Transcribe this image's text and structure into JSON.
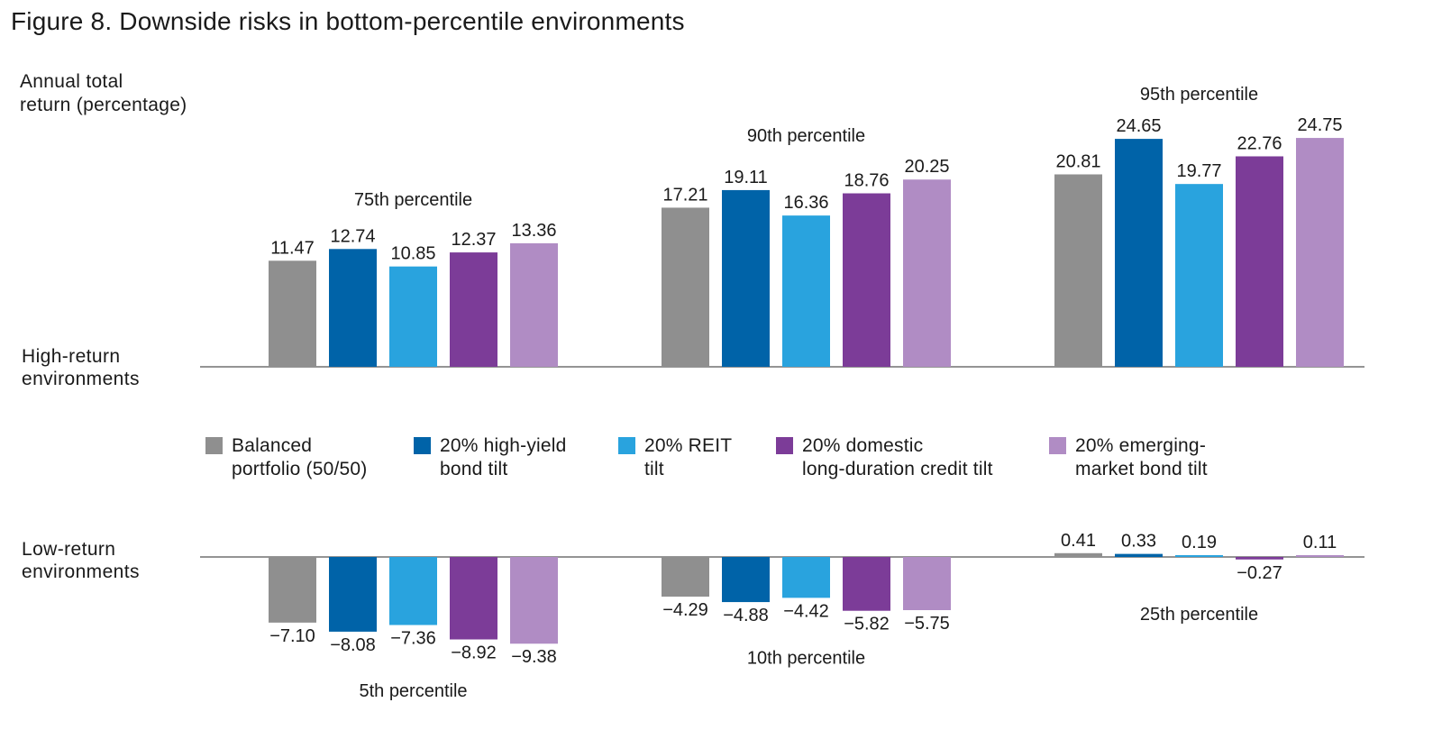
{
  "title": "Figure 8. Downside risks in bottom-percentile environments",
  "ylabel": "Annual total\nreturn (percentage)",
  "high_label": "High-return\nenvironments",
  "low_label": "Low-return\nenvironments",
  "colors": {
    "balanced": "#8f8f8f",
    "high_yield": "#0063a8",
    "reit": "#29a3de",
    "domestic_credit": "#7c3c98",
    "em_bond": "#b08cc4",
    "axis": "#555555"
  },
  "legend": [
    {
      "label": "Balanced\nportfolio (50/50)",
      "color": "#8f8f8f"
    },
    {
      "label": "20% high-yield\nbond tilt",
      "color": "#0063a8"
    },
    {
      "label": "20% REIT\ntilt",
      "color": "#29a3de"
    },
    {
      "label": "20% domestic\nlong-duration credit tilt",
      "color": "#7c3c98"
    },
    {
      "label": "20% emerging-\nmarket bond tilt",
      "color": "#b08cc4"
    }
  ],
  "chart_data": [
    {
      "type": "bar",
      "panel": "High-return environments",
      "categories": [
        "75th percentile",
        "90th percentile",
        "95th percentile"
      ],
      "series": [
        {
          "name": "Balanced portfolio (50/50)",
          "values": [
            11.47,
            17.21,
            20.81
          ],
          "labels": [
            "11.47",
            "17.21",
            "20.81"
          ]
        },
        {
          "name": "20% high-yield bond tilt",
          "values": [
            12.74,
            19.11,
            24.65
          ],
          "labels": [
            "12.74",
            "19.11",
            "24.65"
          ]
        },
        {
          "name": "20% REIT tilt",
          "values": [
            10.85,
            16.36,
            19.77
          ],
          "labels": [
            "10.85",
            "16.36",
            "19.77"
          ]
        },
        {
          "name": "20% domestic long-duration credit tilt",
          "values": [
            12.37,
            18.76,
            22.76
          ],
          "labels": [
            "12.37",
            "18.76",
            "22.76"
          ]
        },
        {
          "name": "20% emerging-market bond tilt",
          "values": [
            13.36,
            20.25,
            24.75
          ],
          "labels": [
            "13.36",
            "20.25",
            "24.75"
          ]
        }
      ]
    },
    {
      "type": "bar",
      "panel": "Low-return environments",
      "categories": [
        "5th percentile",
        "10th percentile",
        "25th percentile"
      ],
      "series": [
        {
          "name": "Balanced portfolio (50/50)",
          "values": [
            -7.1,
            -4.29,
            0.41
          ],
          "labels": [
            "−7.10",
            "−4.29",
            "0.41"
          ]
        },
        {
          "name": "20% high-yield bond tilt",
          "values": [
            -8.08,
            -4.88,
            0.33
          ],
          "labels": [
            "−8.08",
            "−4.88",
            "0.33"
          ]
        },
        {
          "name": "20% REIT tilt",
          "values": [
            -7.36,
            -4.42,
            0.19
          ],
          "labels": [
            "−7.36",
            "−4.42",
            "0.19"
          ]
        },
        {
          "name": "20% domestic long-duration credit tilt",
          "values": [
            -8.92,
            -5.82,
            -0.27
          ],
          "labels": [
            "−8.92",
            "−5.82",
            "−0.27"
          ]
        },
        {
          "name": "20% emerging-market bond tilt",
          "values": [
            -9.38,
            -5.75,
            0.11
          ],
          "labels": [
            "−9.38",
            "−5.75",
            "0.11"
          ]
        }
      ]
    }
  ]
}
